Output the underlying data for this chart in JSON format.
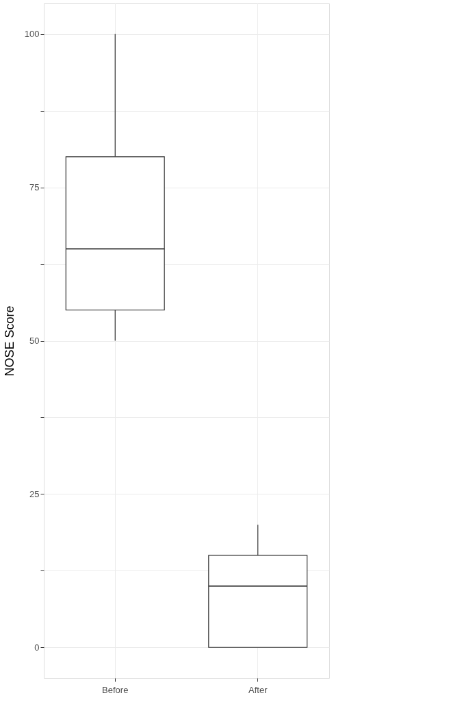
{
  "chart_data": {
    "type": "box",
    "ylabel": "NOSE Score",
    "categories": [
      "Before",
      "After"
    ],
    "boxes": [
      {
        "low": 50,
        "q1": 55,
        "median": 65,
        "q3": 80,
        "high": 100
      },
      {
        "low": 0,
        "q1": 0,
        "median": 10,
        "q3": 15,
        "high": 20
      }
    ],
    "ylim": [
      -5,
      105
    ],
    "yticks": [
      0,
      {
        "value": 12.5,
        "label": null
      },
      25,
      {
        "value": 37.5,
        "label": null
      },
      50,
      {
        "value": 62.5,
        "label": null
      },
      75,
      {
        "value": 87.5,
        "label": null
      },
      100
    ],
    "grid": true
  }
}
